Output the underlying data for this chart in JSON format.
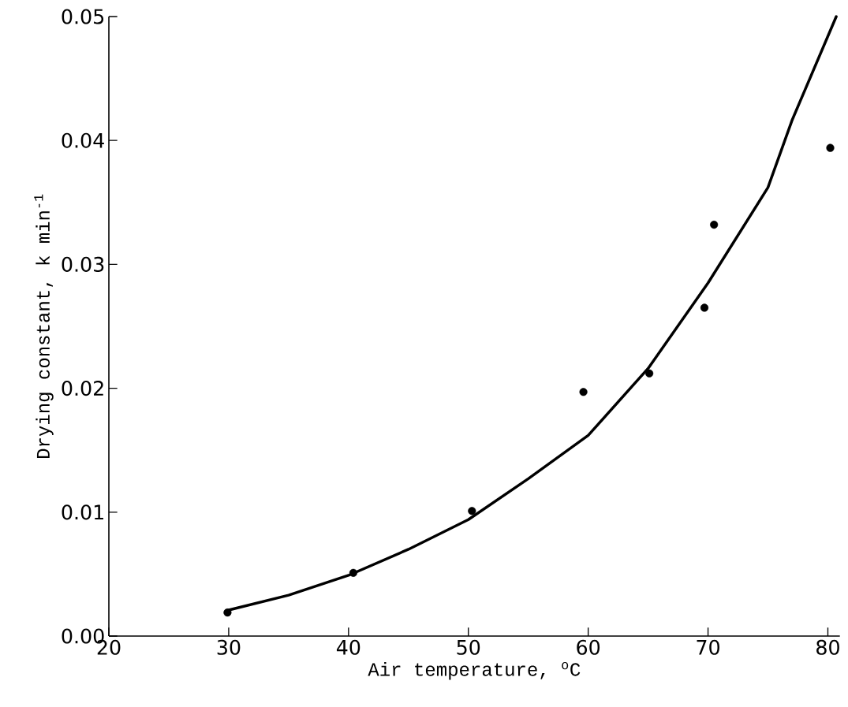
{
  "chart_data": {
    "type": "scatter",
    "xlabel": "Air temperature, $^{o}$C",
    "ylabel": "Drying constant, k min$^{-1}$",
    "xlim": [
      20,
      81
    ],
    "ylim": [
      0,
      0.05
    ],
    "xticks": [
      20,
      30,
      40,
      50,
      60,
      70,
      80
    ],
    "yticks": [
      {
        "value": 0,
        "label": "0.00"
      },
      {
        "value": 0.01,
        "label": "0.01"
      },
      {
        "value": 0.02,
        "label": "0.02"
      },
      {
        "value": 0.03,
        "label": "0.03"
      },
      {
        "value": 0.04,
        "label": "0.04"
      },
      {
        "value": 0.05,
        "label": "0.05"
      }
    ],
    "series": [
      {
        "color": "#000000",
        "marker": "circle",
        "x": [
          29.9,
          40.4,
          50.3,
          59.6,
          65.1,
          69.7,
          70.5,
          80.2
        ],
        "values": [
          0.0019,
          0.0051,
          0.0101,
          0.0197,
          0.0212,
          0.0265,
          0.0332,
          0.0394
        ]
      },
      {
        "type": "line",
        "color": "#000000",
        "marker": "none",
        "line_style": "solid",
        "x": [
          30,
          35,
          40,
          45,
          50,
          55,
          60,
          65,
          70,
          75,
          77,
          80.7
        ],
        "values": [
          0.0021,
          0.0033,
          0.0049,
          0.007,
          0.0094,
          0.0127,
          0.0162,
          0.0216,
          0.0285,
          0.0362,
          0.0416,
          0.05
        ]
      }
    ]
  }
}
